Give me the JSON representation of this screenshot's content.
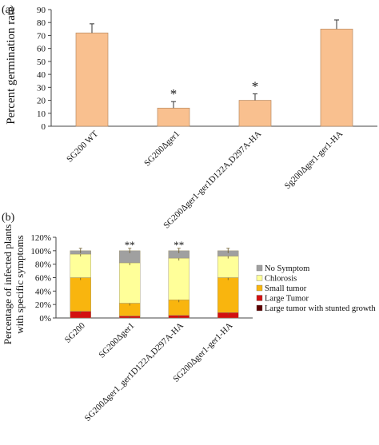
{
  "panels": {
    "a_label": "(a)",
    "b_label": "(b)"
  },
  "colors": {
    "bar_a": "#f9c08f",
    "bar_a_stroke": "#b98a62",
    "axis": "#444444",
    "no_symptom": "#a0a0a0",
    "chlorosis": "#ffff99",
    "small_tumor": "#f9b50e",
    "large_tumor": "#d31010",
    "large_tumor_stunted": "#5c0000"
  },
  "chart_data": [
    {
      "type": "bar",
      "panel": "(a)",
      "ylabel": "Percent germination rate",
      "ylim": [
        0,
        90
      ],
      "yticks": [
        0,
        10,
        20,
        30,
        40,
        50,
        60,
        70,
        80,
        90
      ],
      "categories": [
        "SG200 WT",
        "SG200Δger1",
        "SG200Δger1-ger1D122A,D297A-HA",
        "Sg200Δger1-ger1-HA"
      ],
      "values": [
        72,
        14,
        20,
        75
      ],
      "errors": [
        7,
        5,
        5,
        7
      ],
      "significance": [
        "",
        "*",
        "*",
        ""
      ],
      "grid": false
    },
    {
      "type": "bar",
      "stacked": true,
      "panel": "(b)",
      "ylabel_lines": [
        "Percentage of infected plants",
        "with specific symptoms"
      ],
      "ylim": [
        0,
        120
      ],
      "yticks": [
        "0%",
        "20%",
        "40%",
        "60%",
        "80%",
        "100%",
        "120%"
      ],
      "categories": [
        "SG200",
        "SG200Δger1",
        "SG200Δger1_ger1D122A,D297A-HA",
        "SG200Δger1-ger1-HA"
      ],
      "series": [
        {
          "name": "Large tumor with stunted growth",
          "color": "#5c0000",
          "values": [
            0,
            0,
            0,
            0
          ]
        },
        {
          "name": "Large Tumor",
          "color": "#d31010",
          "values": [
            10,
            3,
            4,
            8
          ]
        },
        {
          "name": "Small tumor",
          "color": "#f9b50e",
          "values": [
            50,
            19,
            23,
            52
          ]
        },
        {
          "name": "Chlorosis",
          "color": "#ffff99",
          "values": [
            35,
            60,
            62,
            32
          ]
        },
        {
          "name": "No Symptom",
          "color": "#a0a0a0",
          "values": [
            5,
            18,
            11,
            8
          ]
        }
      ],
      "legend_order": [
        "No Symptom",
        "Chlorosis",
        "Small tumor",
        "Large Tumor",
        "Large tumor with stunted growth"
      ],
      "significance": [
        "",
        "**",
        "**",
        ""
      ],
      "legend_position": "right",
      "grid": false
    }
  ]
}
